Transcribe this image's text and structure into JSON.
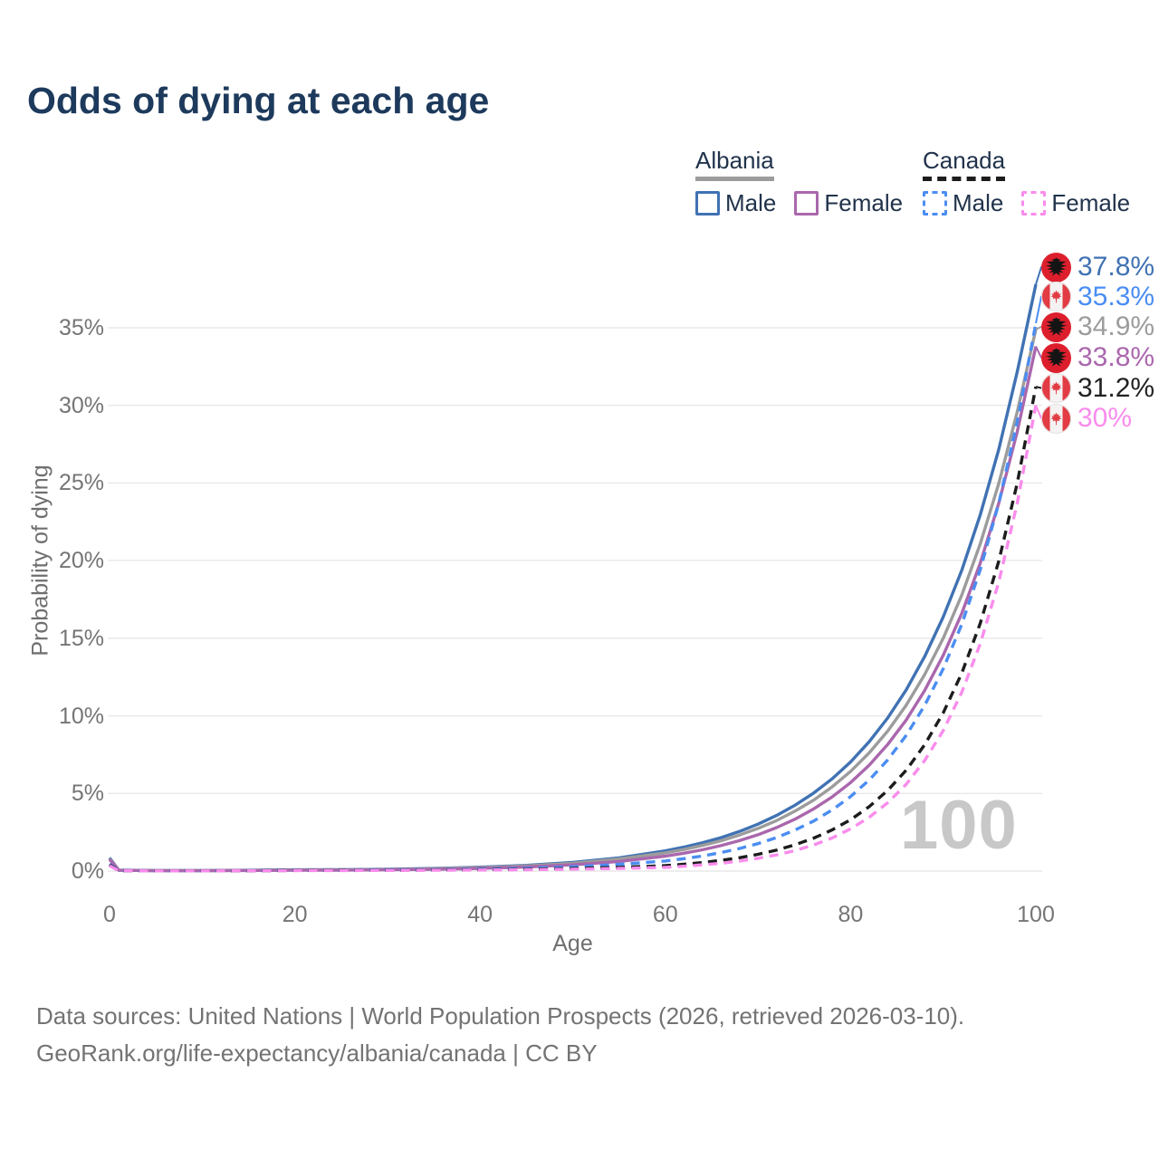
{
  "title": "Odds of dying at each age",
  "legend": {
    "albania": {
      "label": "Albania",
      "male_label": "Male",
      "female_label": "Female"
    },
    "canada": {
      "label": "Canada",
      "male_label": "Male",
      "female_label": "Female"
    }
  },
  "watermark": "100",
  "footer": {
    "line1": "Data sources: United Nations | World Population Prospects (2026, retrieved 2026-03-10).",
    "line2": "GeoRank.org/life-expectancy/albania/canada | CC BY"
  },
  "colors": {
    "title": "#1d3a5c",
    "legend_text": "#21334b",
    "albania_male": "#4072b3",
    "albania_total": "#9c9c9c",
    "albania_female": "#aa67ad",
    "canada_male": "#4b8df2",
    "canada_total": "#1c1c1c",
    "canada_female": "#f98cec",
    "gridline": "#e8e8e8",
    "axis_text": "#757575",
    "watermark": "#c8c8c8",
    "footer_text": "#737373",
    "albania_flag_red": "#dd1f2d",
    "canada_flag_red": "#e23b43"
  },
  "chart_data": {
    "type": "line",
    "title": "Odds of dying at each age",
    "xlabel": "Age",
    "ylabel": "Probability of dying",
    "xlim": [
      0,
      100
    ],
    "ylim": [
      0,
      38.5
    ],
    "grid": "horizontal",
    "legend_position": "top-right",
    "x_ticks": [
      0,
      20,
      40,
      60,
      80,
      100
    ],
    "y_ticks": [
      "0%",
      "5%",
      "10%",
      "15%",
      "20%",
      "25%",
      "30%",
      "35%"
    ],
    "y_tick_values": [
      0,
      5,
      10,
      15,
      20,
      25,
      30,
      35
    ],
    "x": [
      0,
      1,
      5,
      10,
      15,
      20,
      25,
      30,
      35,
      40,
      45,
      50,
      55,
      60,
      62,
      64,
      66,
      68,
      70,
      72,
      74,
      76,
      78,
      80,
      82,
      84,
      86,
      88,
      90,
      92,
      94,
      96,
      98,
      100
    ],
    "series": [
      {
        "name": "Albania Male",
        "country": "Albania",
        "sex": "male",
        "style": "solid",
        "color": "#4072b3",
        "values": [
          0.85,
          0.06,
          0.03,
          0.03,
          0.05,
          0.08,
          0.09,
          0.12,
          0.17,
          0.25,
          0.37,
          0.56,
          0.85,
          1.3,
          1.54,
          1.82,
          2.15,
          2.55,
          3.02,
          3.58,
          4.24,
          5.02,
          5.94,
          7.03,
          8.33,
          9.86,
          11.67,
          13.82,
          16.37,
          19.38,
          22.95,
          27.18,
          32.18,
          37.8
        ]
      },
      {
        "name": "Albania Both sexes",
        "country": "Albania",
        "sex": "both",
        "style": "solid",
        "color": "#9c9c9c",
        "values": [
          0.8,
          0.05,
          0.03,
          0.03,
          0.04,
          0.07,
          0.08,
          0.1,
          0.15,
          0.22,
          0.33,
          0.5,
          0.78,
          1.17,
          1.39,
          1.65,
          1.95,
          2.32,
          2.75,
          3.25,
          3.86,
          4.57,
          5.42,
          6.42,
          7.61,
          9.01,
          10.68,
          12.66,
          15.0,
          17.78,
          21.08,
          24.98,
          29.6,
          34.9
        ]
      },
      {
        "name": "Albania Female",
        "country": "Albania",
        "sex": "female",
        "style": "solid",
        "color": "#aa67ad",
        "values": [
          0.75,
          0.05,
          0.025,
          0.025,
          0.035,
          0.05,
          0.06,
          0.08,
          0.11,
          0.17,
          0.26,
          0.4,
          0.62,
          0.96,
          1.15,
          1.37,
          1.64,
          1.96,
          2.34,
          2.8,
          3.34,
          4.0,
          4.77,
          5.7,
          6.82,
          8.15,
          9.73,
          11.63,
          13.9,
          16.6,
          19.84,
          23.71,
          28.32,
          33.8
        ]
      },
      {
        "name": "Canada Male",
        "country": "Canada",
        "sex": "male",
        "style": "dashed",
        "color": "#4b8df2",
        "values": [
          0.45,
          0.03,
          0.015,
          0.015,
          0.02,
          0.05,
          0.06,
          0.07,
          0.09,
          0.13,
          0.18,
          0.28,
          0.43,
          0.65,
          0.8,
          0.97,
          1.19,
          1.45,
          1.77,
          2.16,
          2.64,
          3.22,
          3.93,
          4.8,
          5.86,
          7.16,
          8.74,
          10.67,
          13.03,
          15.9,
          19.42,
          23.71,
          28.95,
          35.3
        ]
      },
      {
        "name": "Canada Both sexes",
        "country": "Canada",
        "sex": "both",
        "style": "dashed",
        "color": "#1c1c1c",
        "values": [
          0.4,
          0.025,
          0.012,
          0.012,
          0.018,
          0.04,
          0.05,
          0.055,
          0.07,
          0.09,
          0.12,
          0.17,
          0.24,
          0.35,
          0.44,
          0.55,
          0.69,
          0.86,
          1.08,
          1.35,
          1.69,
          2.12,
          2.65,
          3.31,
          4.15,
          5.19,
          6.5,
          8.14,
          10.19,
          12.75,
          15.96,
          19.98,
          25.01,
          31.2
        ]
      },
      {
        "name": "Canada Female",
        "country": "Canada",
        "sex": "female",
        "style": "dashed",
        "color": "#f98cec",
        "values": [
          0.35,
          0.02,
          0.01,
          0.01,
          0.015,
          0.03,
          0.035,
          0.04,
          0.05,
          0.07,
          0.09,
          0.12,
          0.17,
          0.24,
          0.31,
          0.4,
          0.5,
          0.64,
          0.82,
          1.04,
          1.32,
          1.68,
          2.13,
          2.72,
          3.46,
          4.4,
          5.59,
          7.12,
          9.05,
          11.52,
          14.65,
          18.64,
          23.71,
          30.0
        ]
      }
    ],
    "end_labels": [
      {
        "text": "37.8%",
        "value_pct": 37.8,
        "flag": "albania",
        "series": "Albania Male",
        "color": "#4072b3"
      },
      {
        "text": "35.3%",
        "value_pct": 35.3,
        "flag": "canada",
        "series": "Canada Male",
        "color": "#4b8df2"
      },
      {
        "text": "34.9%",
        "value_pct": 34.9,
        "flag": "albania",
        "series": "Albania Both sexes",
        "color": "#9c9c9c"
      },
      {
        "text": "33.8%",
        "value_pct": 33.8,
        "flag": "albania",
        "series": "Albania Female",
        "color": "#aa67ad"
      },
      {
        "text": "31.2%",
        "value_pct": 31.2,
        "flag": "canada",
        "series": "Canada Both sexes",
        "color": "#222222"
      },
      {
        "text": "30%",
        "value_pct": 30.0,
        "flag": "canada",
        "series": "Canada Female",
        "color": "#f98cec"
      }
    ]
  }
}
